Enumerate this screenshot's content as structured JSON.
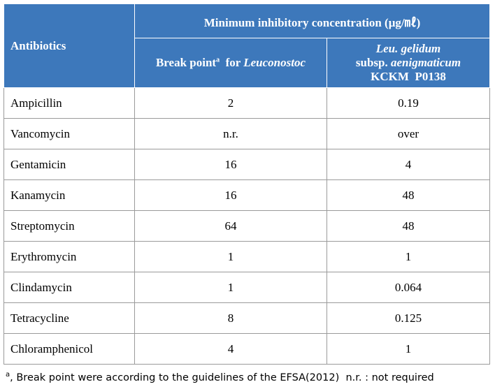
{
  "table": {
    "header": {
      "antibiotics": "Antibiotics",
      "group": "Minimum  inhibitory  concentration (μg/㎖)",
      "col2": [
        "Break point",
        "a",
        "  for ",
        "Leuconostoc"
      ],
      "col3": [
        "Leu. gelidum",
        "subsp. ",
        "aenigmaticum",
        "KCKM  P0138"
      ]
    },
    "rows": [
      [
        "Ampicillin",
        2,
        0.19
      ],
      [
        "Vancomycin",
        "n.r.",
        "over"
      ],
      [
        "Gentamicin",
        16,
        4
      ],
      [
        "Kanamycin",
        16,
        48
      ],
      [
        "Streptomycin",
        64,
        48
      ],
      [
        "Erythromycin",
        1,
        1
      ],
      [
        "Clindamycin",
        1,
        0.064
      ],
      [
        "Tetracycline",
        8,
        0.125
      ],
      [
        "Chloramphenicol",
        4,
        1
      ]
    ]
  },
  "footnote": [
    "a",
    ", Break point were according to the guidelines of the EFSA(2012)  n.r. : not required"
  ]
}
